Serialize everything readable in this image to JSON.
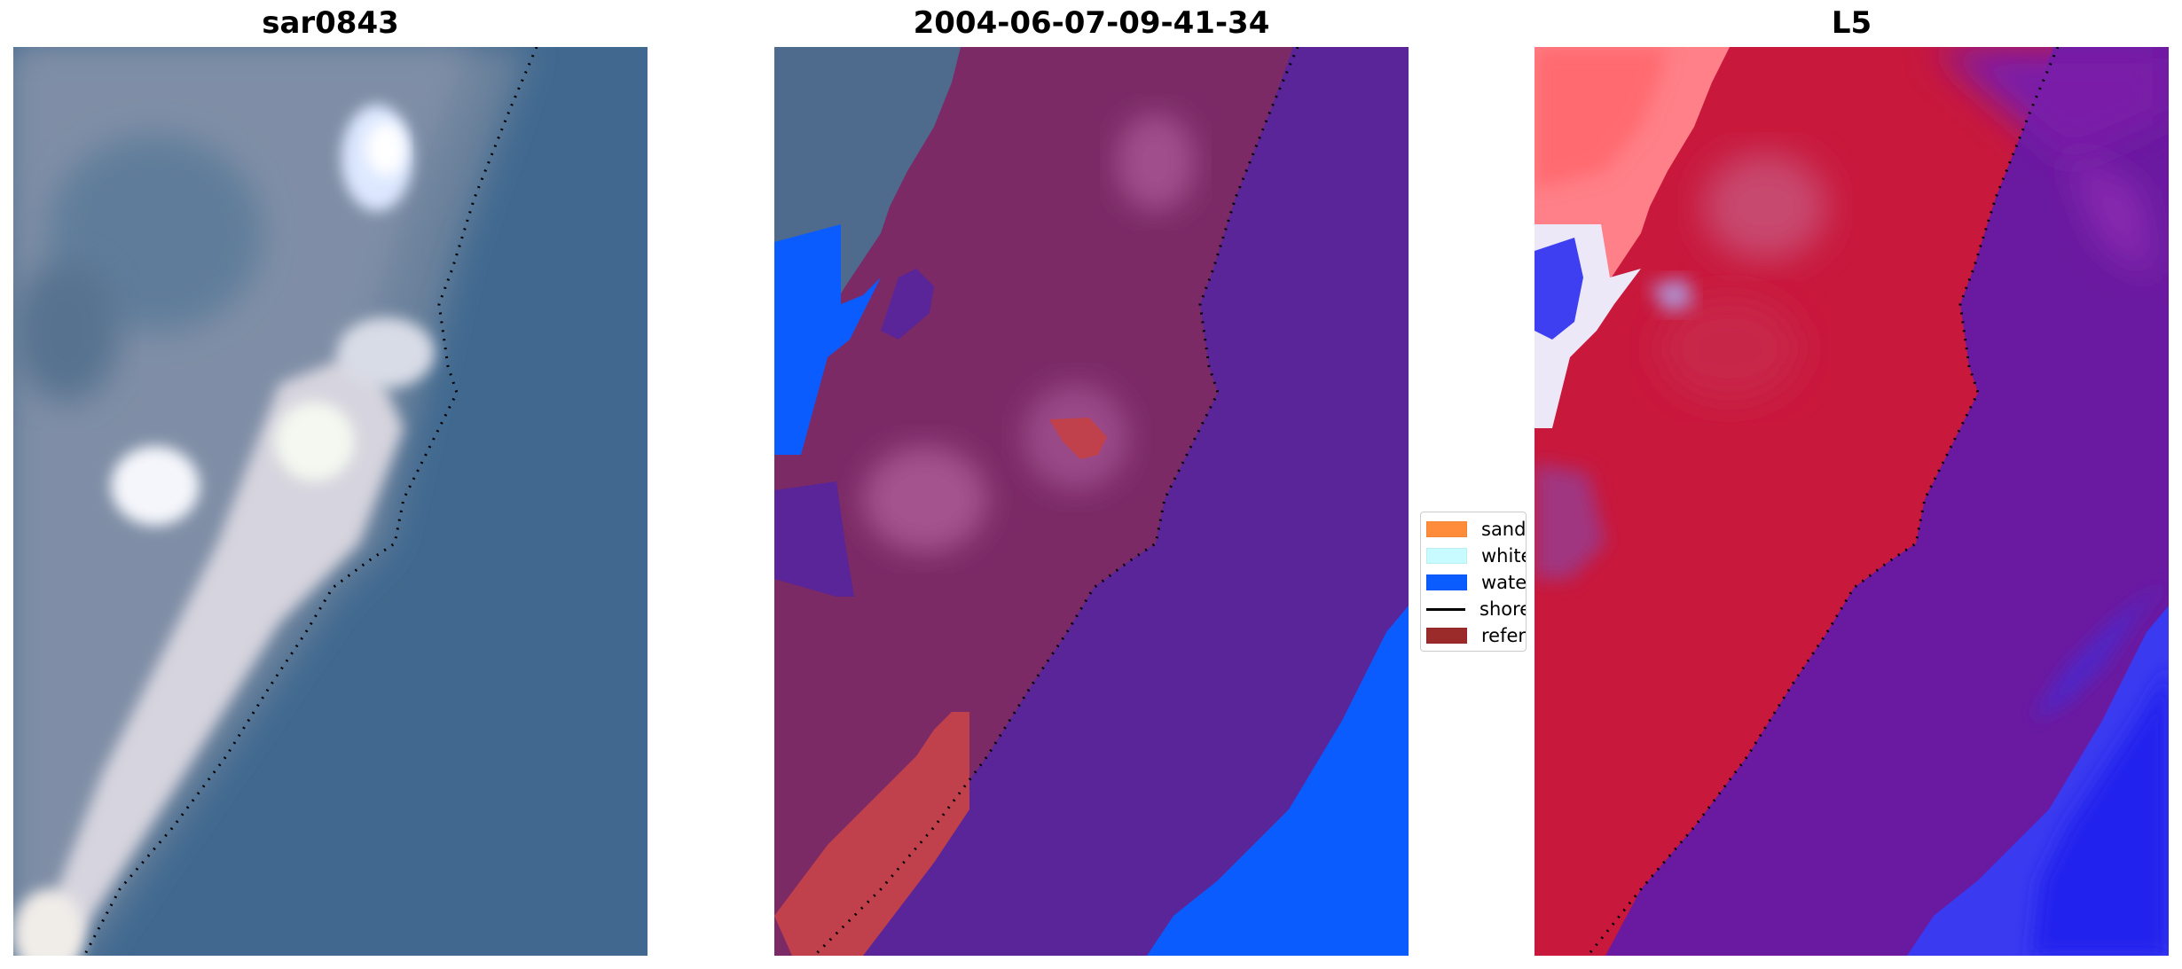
{
  "panels": [
    {
      "title": "sar0843"
    },
    {
      "title": "2004-06-07-09-41-34"
    },
    {
      "title": "L5"
    }
  ],
  "legend": {
    "items": [
      {
        "label": "sand",
        "color": "#ff8c3a",
        "kind": "patch"
      },
      {
        "label": "whitewater",
        "color": "#c8fbff",
        "kind": "patch"
      },
      {
        "label": "water",
        "color": "#0a5cff",
        "kind": "patch"
      },
      {
        "label": "shoreline",
        "color": "#000000",
        "kind": "line"
      },
      {
        "label": "reference shoreline",
        "color": "#9b2a2a",
        "kind": "patch"
      }
    ]
  },
  "colors": {
    "ocean_rgb": "#3f6b93",
    "land_rgb": "#8fa0b8",
    "sand_rgb": "#e8e4e8",
    "class_sea": "#5a2598",
    "class_land": "#7d2a68",
    "class_water": "#0a5cff",
    "class_sand": "#c0404c",
    "mndwi_land": "#c8183c",
    "mndwi_sea": "#6a1aa0",
    "mndwi_deep": "#2030f0",
    "mndwi_light": "#ff7a80"
  }
}
